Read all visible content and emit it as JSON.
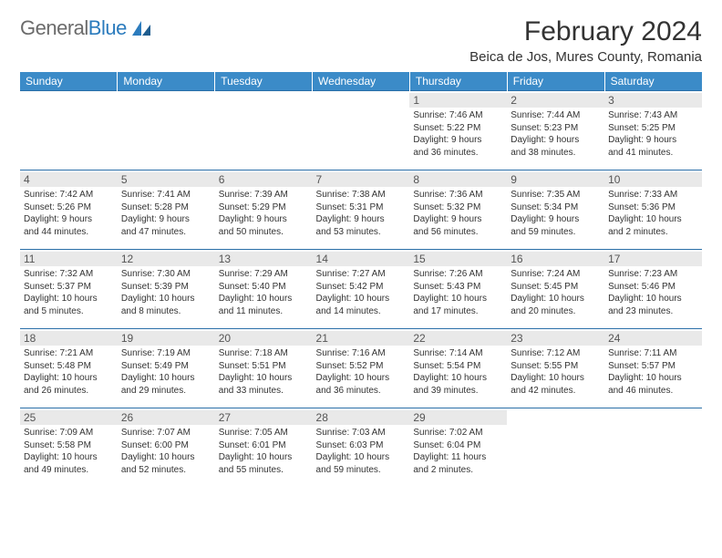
{
  "logo": {
    "word1": "General",
    "word2": "Blue"
  },
  "title": "February 2024",
  "location": "Beica de Jos, Mures County, Romania",
  "colors": {
    "header_bg": "#3b8bc8",
    "header_text": "#ffffff",
    "row_border": "#2b6fa8",
    "daynum_bg": "#e9e9e9",
    "body_text": "#333333",
    "logo_gray": "#6b6b6b",
    "logo_blue": "#2b7bbd"
  },
  "day_headers": [
    "Sunday",
    "Monday",
    "Tuesday",
    "Wednesday",
    "Thursday",
    "Friday",
    "Saturday"
  ],
  "weeks": [
    [
      {
        "empty": true
      },
      {
        "empty": true
      },
      {
        "empty": true
      },
      {
        "empty": true
      },
      {
        "n": "1",
        "sunrise": "Sunrise: 7:46 AM",
        "sunset": "Sunset: 5:22 PM",
        "d1": "Daylight: 9 hours",
        "d2": "and 36 minutes."
      },
      {
        "n": "2",
        "sunrise": "Sunrise: 7:44 AM",
        "sunset": "Sunset: 5:23 PM",
        "d1": "Daylight: 9 hours",
        "d2": "and 38 minutes."
      },
      {
        "n": "3",
        "sunrise": "Sunrise: 7:43 AM",
        "sunset": "Sunset: 5:25 PM",
        "d1": "Daylight: 9 hours",
        "d2": "and 41 minutes."
      }
    ],
    [
      {
        "n": "4",
        "sunrise": "Sunrise: 7:42 AM",
        "sunset": "Sunset: 5:26 PM",
        "d1": "Daylight: 9 hours",
        "d2": "and 44 minutes."
      },
      {
        "n": "5",
        "sunrise": "Sunrise: 7:41 AM",
        "sunset": "Sunset: 5:28 PM",
        "d1": "Daylight: 9 hours",
        "d2": "and 47 minutes."
      },
      {
        "n": "6",
        "sunrise": "Sunrise: 7:39 AM",
        "sunset": "Sunset: 5:29 PM",
        "d1": "Daylight: 9 hours",
        "d2": "and 50 minutes."
      },
      {
        "n": "7",
        "sunrise": "Sunrise: 7:38 AM",
        "sunset": "Sunset: 5:31 PM",
        "d1": "Daylight: 9 hours",
        "d2": "and 53 minutes."
      },
      {
        "n": "8",
        "sunrise": "Sunrise: 7:36 AM",
        "sunset": "Sunset: 5:32 PM",
        "d1": "Daylight: 9 hours",
        "d2": "and 56 minutes."
      },
      {
        "n": "9",
        "sunrise": "Sunrise: 7:35 AM",
        "sunset": "Sunset: 5:34 PM",
        "d1": "Daylight: 9 hours",
        "d2": "and 59 minutes."
      },
      {
        "n": "10",
        "sunrise": "Sunrise: 7:33 AM",
        "sunset": "Sunset: 5:36 PM",
        "d1": "Daylight: 10 hours",
        "d2": "and 2 minutes."
      }
    ],
    [
      {
        "n": "11",
        "sunrise": "Sunrise: 7:32 AM",
        "sunset": "Sunset: 5:37 PM",
        "d1": "Daylight: 10 hours",
        "d2": "and 5 minutes."
      },
      {
        "n": "12",
        "sunrise": "Sunrise: 7:30 AM",
        "sunset": "Sunset: 5:39 PM",
        "d1": "Daylight: 10 hours",
        "d2": "and 8 minutes."
      },
      {
        "n": "13",
        "sunrise": "Sunrise: 7:29 AM",
        "sunset": "Sunset: 5:40 PM",
        "d1": "Daylight: 10 hours",
        "d2": "and 11 minutes."
      },
      {
        "n": "14",
        "sunrise": "Sunrise: 7:27 AM",
        "sunset": "Sunset: 5:42 PM",
        "d1": "Daylight: 10 hours",
        "d2": "and 14 minutes."
      },
      {
        "n": "15",
        "sunrise": "Sunrise: 7:26 AM",
        "sunset": "Sunset: 5:43 PM",
        "d1": "Daylight: 10 hours",
        "d2": "and 17 minutes."
      },
      {
        "n": "16",
        "sunrise": "Sunrise: 7:24 AM",
        "sunset": "Sunset: 5:45 PM",
        "d1": "Daylight: 10 hours",
        "d2": "and 20 minutes."
      },
      {
        "n": "17",
        "sunrise": "Sunrise: 7:23 AM",
        "sunset": "Sunset: 5:46 PM",
        "d1": "Daylight: 10 hours",
        "d2": "and 23 minutes."
      }
    ],
    [
      {
        "n": "18",
        "sunrise": "Sunrise: 7:21 AM",
        "sunset": "Sunset: 5:48 PM",
        "d1": "Daylight: 10 hours",
        "d2": "and 26 minutes."
      },
      {
        "n": "19",
        "sunrise": "Sunrise: 7:19 AM",
        "sunset": "Sunset: 5:49 PM",
        "d1": "Daylight: 10 hours",
        "d2": "and 29 minutes."
      },
      {
        "n": "20",
        "sunrise": "Sunrise: 7:18 AM",
        "sunset": "Sunset: 5:51 PM",
        "d1": "Daylight: 10 hours",
        "d2": "and 33 minutes."
      },
      {
        "n": "21",
        "sunrise": "Sunrise: 7:16 AM",
        "sunset": "Sunset: 5:52 PM",
        "d1": "Daylight: 10 hours",
        "d2": "and 36 minutes."
      },
      {
        "n": "22",
        "sunrise": "Sunrise: 7:14 AM",
        "sunset": "Sunset: 5:54 PM",
        "d1": "Daylight: 10 hours",
        "d2": "and 39 minutes."
      },
      {
        "n": "23",
        "sunrise": "Sunrise: 7:12 AM",
        "sunset": "Sunset: 5:55 PM",
        "d1": "Daylight: 10 hours",
        "d2": "and 42 minutes."
      },
      {
        "n": "24",
        "sunrise": "Sunrise: 7:11 AM",
        "sunset": "Sunset: 5:57 PM",
        "d1": "Daylight: 10 hours",
        "d2": "and 46 minutes."
      }
    ],
    [
      {
        "n": "25",
        "sunrise": "Sunrise: 7:09 AM",
        "sunset": "Sunset: 5:58 PM",
        "d1": "Daylight: 10 hours",
        "d2": "and 49 minutes."
      },
      {
        "n": "26",
        "sunrise": "Sunrise: 7:07 AM",
        "sunset": "Sunset: 6:00 PM",
        "d1": "Daylight: 10 hours",
        "d2": "and 52 minutes."
      },
      {
        "n": "27",
        "sunrise": "Sunrise: 7:05 AM",
        "sunset": "Sunset: 6:01 PM",
        "d1": "Daylight: 10 hours",
        "d2": "and 55 minutes."
      },
      {
        "n": "28",
        "sunrise": "Sunrise: 7:03 AM",
        "sunset": "Sunset: 6:03 PM",
        "d1": "Daylight: 10 hours",
        "d2": "and 59 minutes."
      },
      {
        "n": "29",
        "sunrise": "Sunrise: 7:02 AM",
        "sunset": "Sunset: 6:04 PM",
        "d1": "Daylight: 11 hours",
        "d2": "and 2 minutes."
      },
      {
        "empty": true
      },
      {
        "empty": true
      }
    ]
  ]
}
